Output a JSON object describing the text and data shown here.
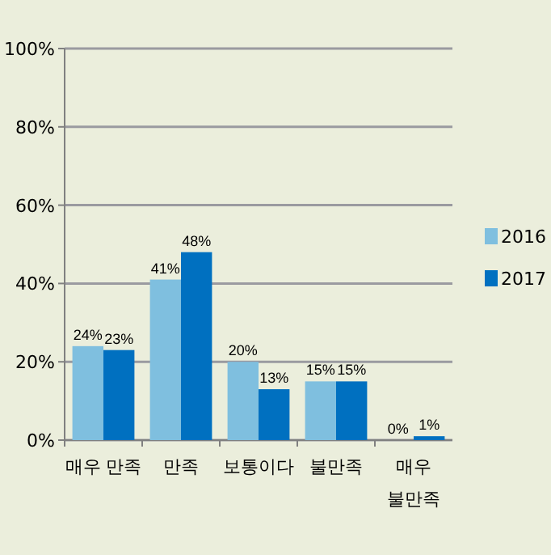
{
  "chart_data": {
    "type": "bar",
    "categories": [
      "매우 만족",
      "만족",
      "보통이다",
      "불만족",
      "매우 불만족"
    ],
    "series": [
      {
        "name": "2016",
        "color": "#7fbfdf",
        "values": [
          24,
          41,
          20,
          15,
          0
        ]
      },
      {
        "name": "2017",
        "color": "#0070c0",
        "values": [
          23,
          48,
          13,
          15,
          1
        ]
      }
    ],
    "ylim": [
      0,
      100
    ],
    "yticks": [
      {
        "value": 0,
        "label": "0%"
      },
      {
        "value": 20,
        "label": "20%"
      },
      {
        "value": 40,
        "label": "40%"
      },
      {
        "value": 60,
        "label": "60%"
      },
      {
        "value": 80,
        "label": "80%"
      },
      {
        "value": 100,
        "label": "100%"
      }
    ],
    "value_labels": [
      [
        "24%",
        "41%",
        "20%",
        "15%",
        "0%"
      ],
      [
        "23%",
        "48%",
        "13%",
        "15%",
        "1%"
      ]
    ],
    "grid": "y",
    "legend": "right"
  }
}
